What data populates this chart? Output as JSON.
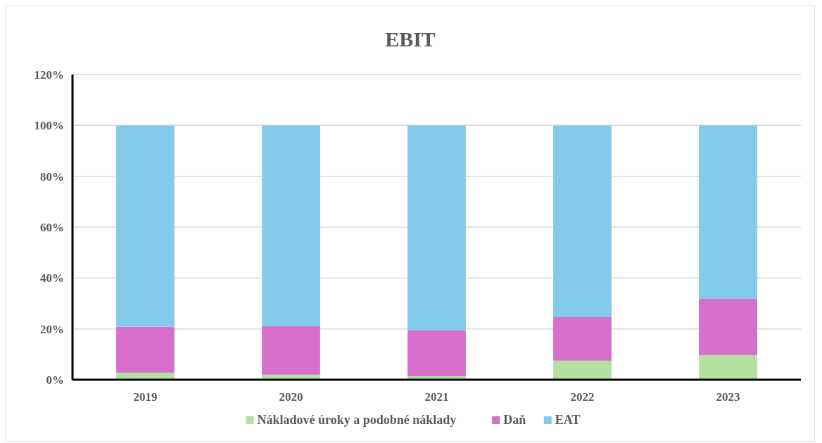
{
  "chart_data": {
    "type": "bar",
    "title": "EBIT",
    "stacked": true,
    "categories": [
      "2019",
      "2020",
      "2021",
      "2022",
      "2023"
    ],
    "series": [
      {
        "name": "Nákladové úroky a podobné náklady",
        "color": "#b3e2a0",
        "values": [
          2.8,
          2,
          1.4,
          7.5,
          9.7
        ]
      },
      {
        "name": "Daň",
        "color": "#d76ec9",
        "values": [
          18,
          19,
          18,
          17.1,
          22.1
        ]
      },
      {
        "name": "EAT",
        "color": "#84cbea",
        "values": [
          79.2,
          79,
          80.6,
          75.4,
          68.2
        ]
      }
    ],
    "ylim": [
      0,
      120
    ],
    "yticks": [
      {
        "value": 0,
        "label": "0%"
      },
      {
        "value": 20,
        "label": "20%"
      },
      {
        "value": 40,
        "label": "40%"
      },
      {
        "value": 60,
        "label": "60%"
      },
      {
        "value": 80,
        "label": "80%"
      },
      {
        "value": 100,
        "label": "100%"
      },
      {
        "value": 120,
        "label": "120%"
      }
    ],
    "grid": "y",
    "legend": "bottom"
  }
}
